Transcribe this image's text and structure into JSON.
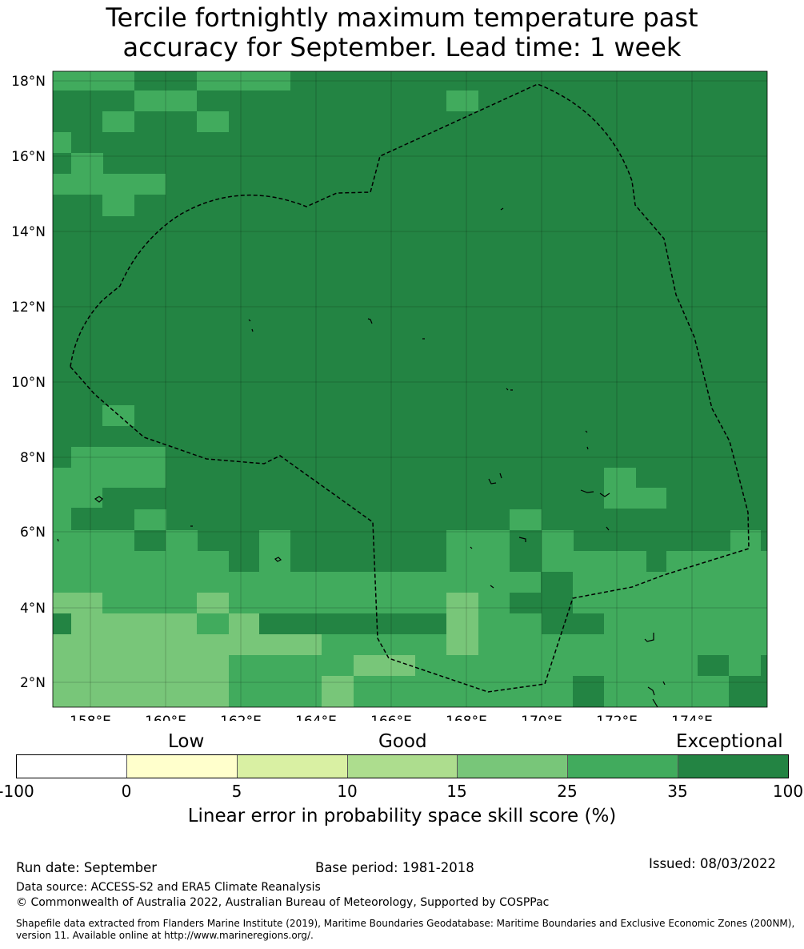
{
  "title": {
    "line1": "Tercile fortnightly maximum temperature past",
    "line2": "accuracy for September. Lead time: 1 week"
  },
  "map": {
    "lon_range": [
      157,
      176
    ],
    "lat_range": [
      1.4,
      18.3
    ],
    "lon_ticks": [
      "158°E",
      "160°E",
      "162°E",
      "164°E",
      "166°E",
      "168°E",
      "170°E",
      "172°E",
      "174°E"
    ],
    "lat_ticks": [
      "18°N",
      "16°N",
      "14°N",
      "12°N",
      "10°N",
      "8°N",
      "6°N",
      "4°N",
      "2°N"
    ],
    "dominant_category": "35 to 100",
    "boundary": "dashed black outline of the EEZ"
  },
  "legend": {
    "categories": [
      "Low",
      "Good",
      "Exceptional"
    ],
    "ticks": [
      "-100",
      "0",
      "5",
      "10",
      "15",
      "25",
      "35",
      "100"
    ],
    "colors": [
      "#ffffff",
      "#ffffcc",
      "#d9f0a3",
      "#addd8e",
      "#78c679",
      "#41ab5d",
      "#238443"
    ],
    "label": "Linear error in probability space skill score (%)"
  },
  "footer": {
    "run_date": "Run date: September",
    "base_period": "Base period: 1981-2018",
    "issued": "Issued: 08/03/2022",
    "data_source": "Data source: ACCESS-S2 and ERA5 Climate Reanalysis",
    "copyright": "© Commonwealth of Australia 2022, Australian Bureau of Meteorology, Supported by COSPPac",
    "shapefile_line1": "Shapefile data extracted from Flanders Marine Institute (2019), Maritime Boundaries Geodatabase: Maritime Boundaries and Exclusive Economic Zones (200NM),",
    "shapefile_line2": "version 11. Available online at http://www.marineregions.org/."
  }
}
